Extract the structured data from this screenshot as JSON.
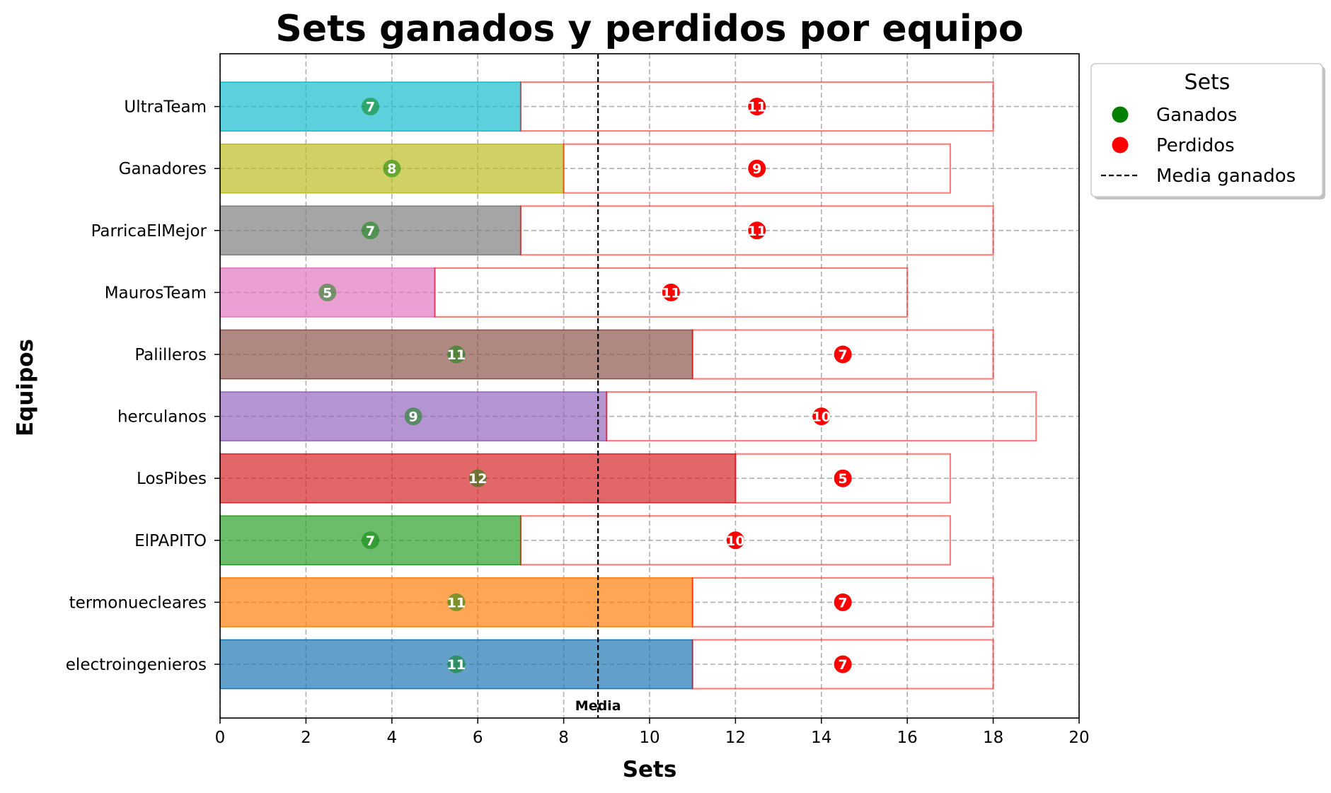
{
  "chart_data": {
    "type": "bar",
    "title": "Sets ganados y perdidos por equipo",
    "xlabel": "Sets",
    "ylabel": "Equipos",
    "xlim": [
      0,
      20
    ],
    "xticks": [
      "0",
      "2",
      "4",
      "6",
      "8",
      "10",
      "12",
      "14",
      "16",
      "18",
      "20"
    ],
    "grid": true,
    "categories": [
      "electroingenieros",
      "termonuecleares",
      "ElPAPITO",
      "LosPibes",
      "herculanos",
      "Palilleros",
      "MaurosTeam",
      "ParricaElMejor",
      "Ganadores",
      "UltraTeam"
    ],
    "bar_colors": [
      "#1f77b4",
      "#ff7f0e",
      "#2ca02c",
      "#d62728",
      "#9467bd",
      "#8c564b",
      "#e377c2",
      "#7f7f7f",
      "#bcbd22",
      "#17becf"
    ],
    "series": [
      {
        "name": "Ganados",
        "color": "#008000",
        "values": [
          11,
          11,
          7,
          12,
          9,
          11,
          5,
          7,
          8,
          7
        ]
      },
      {
        "name": "Perdidos",
        "color": "#ff0000",
        "values": [
          7,
          7,
          10,
          5,
          10,
          7,
          11,
          11,
          9,
          11
        ]
      }
    ],
    "mean_line": {
      "name": "Media ganados",
      "value": 8.8,
      "label": "Media"
    },
    "legend": {
      "title": "Sets",
      "placement": "outside right top",
      "entries": [
        "Ganados",
        "Perdidos",
        "Media ganados"
      ]
    }
  }
}
